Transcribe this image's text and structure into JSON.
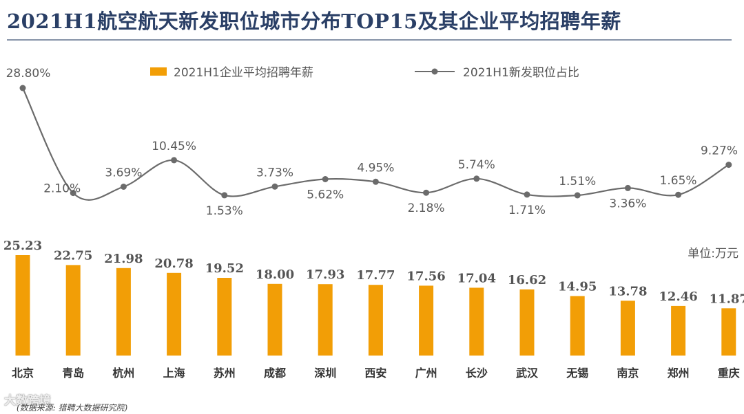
{
  "title": "2021H1航空航天新发职位城市分布TOP15及其企业平均招聘年薪",
  "unit_label": "单位:万元",
  "watermark": "大数跨境",
  "source": "(数据来源: 猎聘大数据研究院)",
  "colors": {
    "bar": "#f29e06",
    "line": "#6b6b6b",
    "title": "#2a3f66"
  },
  "chart_data": {
    "type": "bar+line",
    "title": "2021H1航空航天新发职位城市分布TOP15及其企业平均招聘年薪",
    "categories": [
      "北京",
      "青岛",
      "杭州",
      "上海",
      "苏州",
      "成都",
      "深圳",
      "西安",
      "广州",
      "长沙",
      "武汉",
      "无锡",
      "南京",
      "郑州",
      "重庆"
    ],
    "series": [
      {
        "name": "2021H1企业平均招聘年薪",
        "type": "bar",
        "values": [
          25.23,
          22.75,
          21.98,
          20.78,
          19.52,
          18.0,
          17.93,
          17.77,
          17.56,
          17.04,
          16.62,
          14.95,
          13.78,
          12.46,
          11.87
        ],
        "labels": [
          "25.23",
          "22.75",
          "21.98",
          "20.78",
          "19.52",
          "18.00",
          "17.93",
          "17.77",
          "17.56",
          "17.04",
          "16.62",
          "14.95",
          "13.78",
          "12.46",
          "11.87"
        ],
        "unit": "万元"
      },
      {
        "name": "2021H1新发职位占比",
        "type": "line",
        "values": [
          28.8,
          2.1,
          3.69,
          10.45,
          1.53,
          3.73,
          5.62,
          4.95,
          2.18,
          5.74,
          1.71,
          1.51,
          3.36,
          1.65,
          9.27
        ],
        "labels": [
          "28.80%",
          "2.10%",
          "3.69%",
          "10.45%",
          "1.53%",
          "3.73%",
          "5.62%",
          "4.95%",
          "2.18%",
          "5.74%",
          "1.71%",
          "1.51%",
          "3.36%",
          "1.65%",
          "9.27%"
        ],
        "label_positions": [
          "above",
          "below",
          "above",
          "above",
          "below",
          "above",
          "below",
          "above",
          "below",
          "above",
          "below",
          "above",
          "below",
          "above",
          "above"
        ]
      }
    ],
    "legend": [
      "2021H1企业平均招聘年薪",
      "2021H1新发职位占比"
    ],
    "legend_position": "top-center"
  }
}
